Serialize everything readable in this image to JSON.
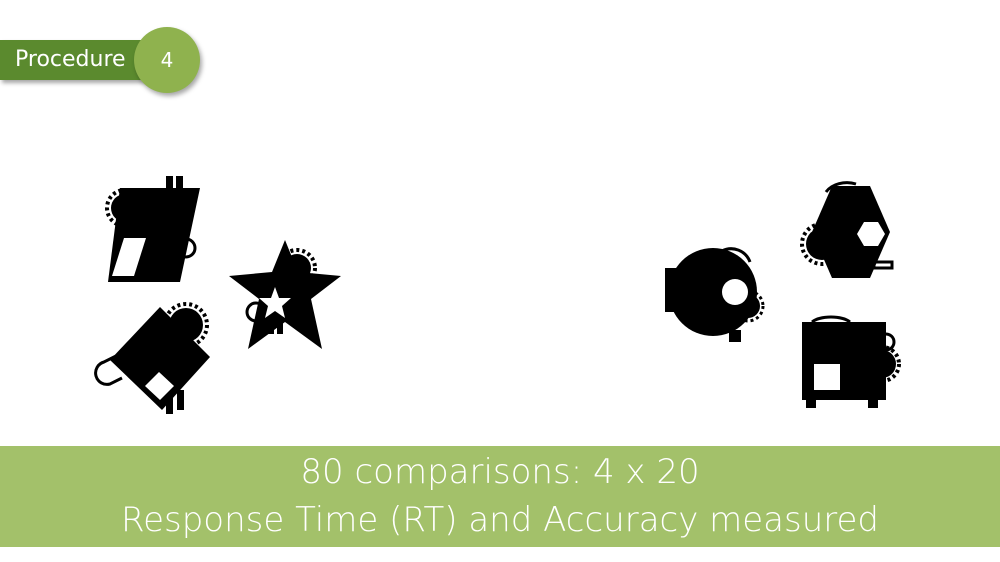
{
  "badge": {
    "label": "Procedure",
    "number": "4"
  },
  "footer": {
    "line1": "80 comparisons: 4 x 20",
    "line2": "Response Time (RT) and Accuracy measured"
  },
  "colors": {
    "badge_dark_green": "#5b8a2e",
    "badge_circle_green": "#8fb24e",
    "footer_green": "#a3c16a",
    "shape_fill": "#000000"
  },
  "stimuli": {
    "left_set": [
      "shape-rect-with-gear",
      "shape-diamond-with-gear",
      "shape-star-with-gear"
    ],
    "right_set": [
      "shape-round-with-gear",
      "shape-hexagon-with-gear",
      "shape-square-with-gear"
    ]
  }
}
